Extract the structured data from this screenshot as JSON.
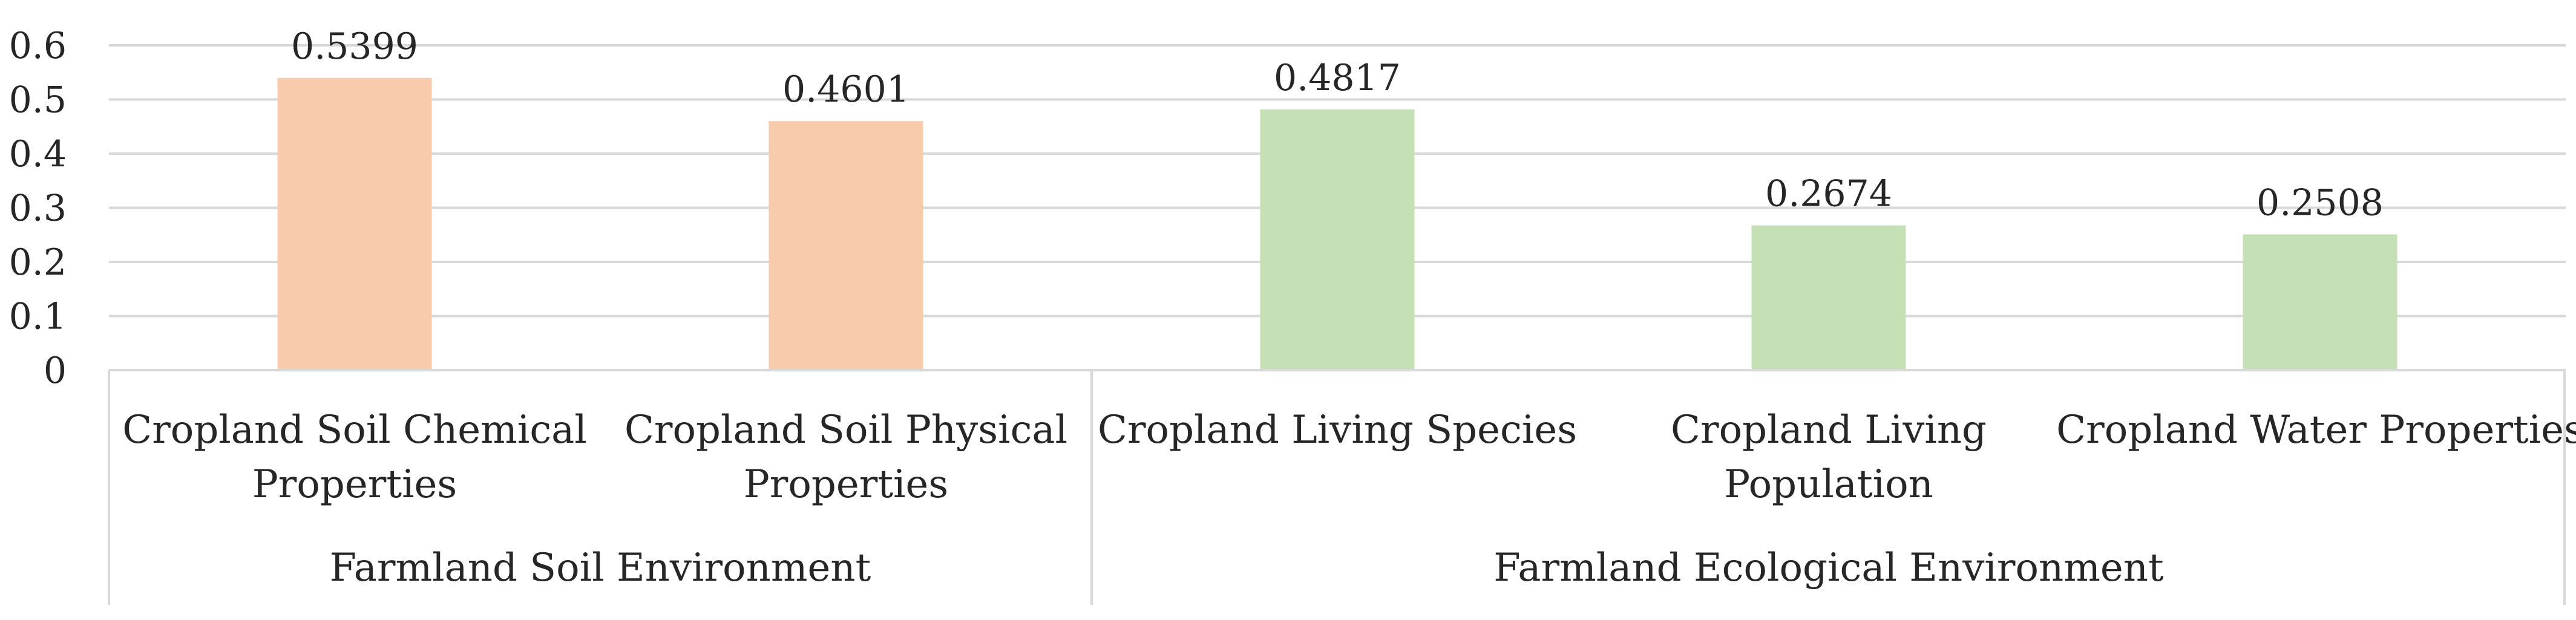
{
  "chart_data": {
    "type": "bar",
    "title": "",
    "xlabel": "",
    "ylabel": "",
    "ylim": [
      0,
      0.6
    ],
    "yticks": [
      "0",
      "0.1",
      "0.2",
      "0.3",
      "0.4",
      "0.5",
      "0.6"
    ],
    "grid": true,
    "legend": "none",
    "categories": [
      [
        "Cropland Soil Chemical",
        "Properties"
      ],
      [
        "Cropland Soil Physical",
        "Properties"
      ],
      [
        "Cropland Living Species"
      ],
      [
        "Cropland Living",
        "Population"
      ],
      [
        "Cropland Water Properties"
      ]
    ],
    "values": [
      0.5399,
      0.4601,
      0.4817,
      0.2674,
      0.2508
    ],
    "value_labels": [
      "0.5399",
      "0.4601",
      "0.4817",
      "0.2674",
      "0.2508"
    ],
    "bar_groups": [
      0,
      0,
      1,
      1,
      1
    ],
    "groups": [
      {
        "label": "Farmland Soil Environment",
        "count": 2,
        "color": "#f8cbad"
      },
      {
        "label": "Farmland Ecological Environment",
        "count": 3,
        "color": "#c5e0b4"
      }
    ],
    "colors": {
      "grid": "#d9d9d9",
      "text": "#262626"
    }
  }
}
